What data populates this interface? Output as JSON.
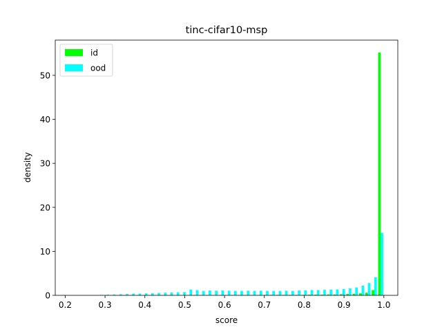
{
  "chart_data": {
    "type": "bar",
    "title": "tinc-cifar10-msp",
    "xlabel": "score",
    "ylabel": "density",
    "xlim": [
      0.175,
      1.035
    ],
    "ylim": [
      0,
      58
    ],
    "x_ticks": [
      "0.2",
      "0.3",
      "0.4",
      "0.5",
      "0.6",
      "0.7",
      "0.8",
      "0.9",
      "1.0"
    ],
    "x_tick_values": [
      0.2,
      0.3,
      0.4,
      0.5,
      0.6,
      0.7,
      0.8,
      0.9,
      1.0
    ],
    "y_ticks": [
      "0",
      "10",
      "20",
      "30",
      "40",
      "50"
    ],
    "y_tick_values": [
      0,
      10,
      20,
      30,
      40,
      50
    ],
    "legend_position": "upper-left",
    "bin_width": 0.016,
    "bin_starts": [
      0.2,
      0.216,
      0.232,
      0.248,
      0.264,
      0.28,
      0.296,
      0.312,
      0.328,
      0.344,
      0.36,
      0.376,
      0.392,
      0.408,
      0.424,
      0.44,
      0.456,
      0.472,
      0.488,
      0.504,
      0.52,
      0.536,
      0.552,
      0.568,
      0.584,
      0.6,
      0.616,
      0.632,
      0.648,
      0.664,
      0.68,
      0.696,
      0.712,
      0.728,
      0.744,
      0.76,
      0.776,
      0.792,
      0.808,
      0.824,
      0.84,
      0.856,
      0.872,
      0.888,
      0.904,
      0.92,
      0.936,
      0.952,
      0.968,
      0.984
    ],
    "series": [
      {
        "name": "id",
        "color": "#00ff00",
        "values": [
          0,
          0,
          0,
          0,
          0,
          0,
          0,
          0,
          0,
          0,
          0,
          0,
          0,
          0,
          0,
          0,
          0,
          0,
          0,
          0.05,
          0.05,
          0.05,
          0.05,
          0.05,
          0.05,
          0.05,
          0.05,
          0.05,
          0.05,
          0.05,
          0.05,
          0.1,
          0.1,
          0.1,
          0.1,
          0.1,
          0.1,
          0.1,
          0.15,
          0.15,
          0.15,
          0.2,
          0.2,
          0.25,
          0.3,
          0.35,
          0.45,
          0.6,
          1.2,
          55.2
        ]
      },
      {
        "name": "ood",
        "color": "#00ffff",
        "values": [
          0,
          0,
          0,
          0,
          0,
          0.1,
          0.15,
          0.2,
          0.25,
          0.3,
          0.4,
          0.4,
          0.45,
          0.5,
          0.55,
          0.6,
          0.65,
          0.7,
          0.75,
          1.3,
          1.2,
          1.0,
          1.1,
          1.05,
          1.1,
          1.05,
          1.0,
          1.0,
          1.05,
          1.0,
          1.05,
          1.0,
          1.0,
          1.0,
          1.05,
          1.0,
          1.1,
          1.15,
          1.2,
          1.2,
          1.25,
          1.3,
          1.35,
          1.45,
          1.6,
          1.8,
          2.2,
          2.8,
          4.1,
          14.2
        ]
      }
    ]
  }
}
